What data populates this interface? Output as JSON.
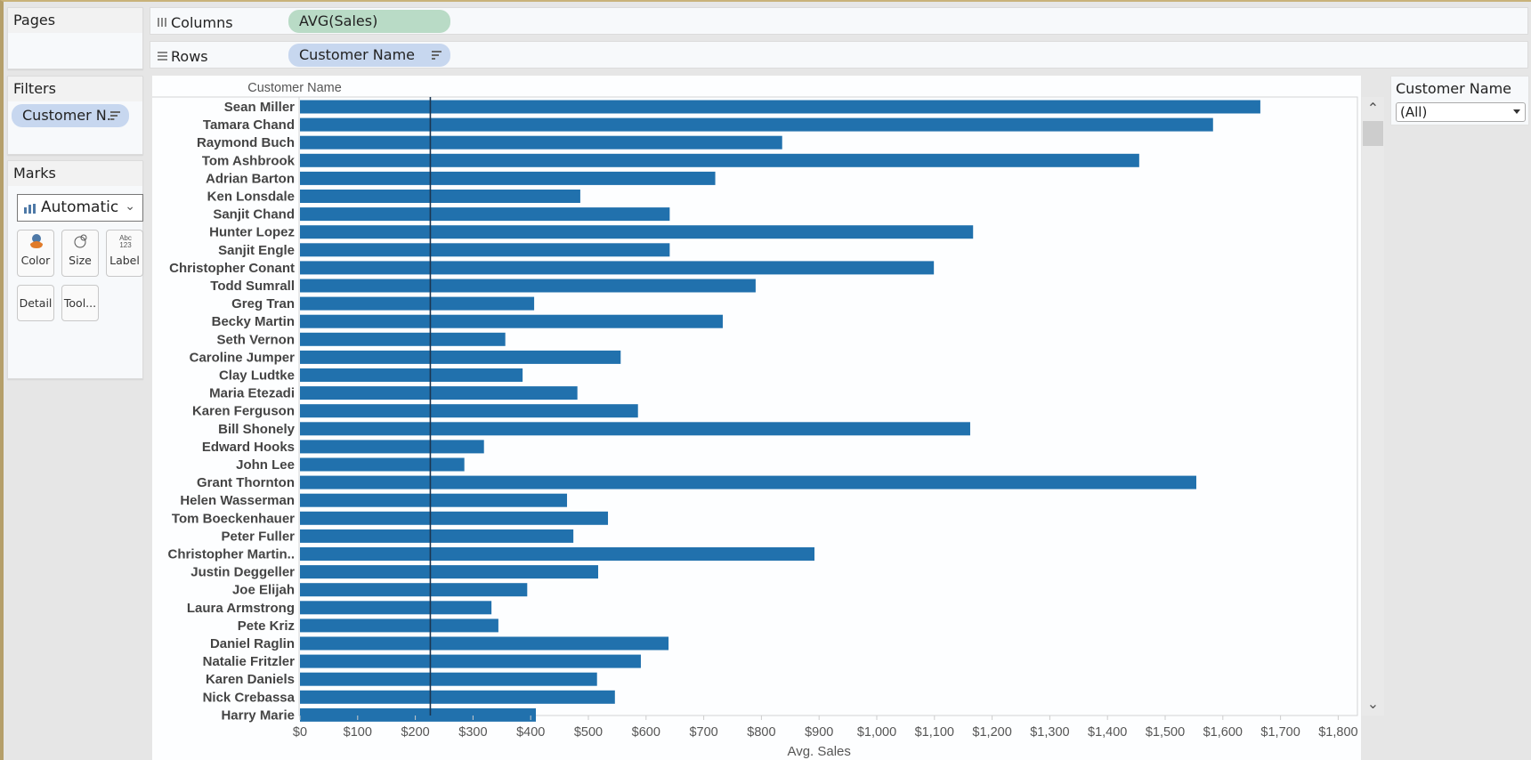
{
  "panels": {
    "pages_title": "Pages",
    "filters_title": "Filters",
    "marks_title": "Marks"
  },
  "filters": {
    "pill_label": "Customer N.."
  },
  "marks": {
    "type": "Automatic",
    "buttons": [
      {
        "label": "Color",
        "icon": "color-icon"
      },
      {
        "label": "Size",
        "icon": "size-icon"
      },
      {
        "label": "Label",
        "icon": "label-icon"
      },
      {
        "label": "Detail",
        "icon": "detail-icon"
      },
      {
        "label": "Tool...",
        "icon": "tooltip-icon"
      }
    ],
    "label_icon_text": "Abc\n123"
  },
  "shelves": {
    "columns_label": "Columns",
    "columns_pill": "AVG(Sales)",
    "rows_label": "Rows",
    "rows_pill": "Customer Name"
  },
  "quick_filter": {
    "title": "Customer Name",
    "selected": "(All)"
  },
  "colors": {
    "bar": "#2171ad",
    "reference_line": "#1b3550",
    "pill_blue": "#c7d7ef",
    "pill_green": "#b9dbc6"
  },
  "chart_data": {
    "type": "bar",
    "orientation": "horizontal",
    "row_header": "Customer Name",
    "xlabel": "Avg. Sales",
    "ylabel": "Customer Name",
    "xlim": [
      0,
      1850
    ],
    "x_ticks": [
      0,
      100,
      200,
      300,
      400,
      500,
      600,
      700,
      800,
      900,
      1000,
      1100,
      1200,
      1300,
      1400,
      1500,
      1600,
      1700,
      1800
    ],
    "x_tick_labels": [
      "$0",
      "$100",
      "$200",
      "$300",
      "$400",
      "$500",
      "$600",
      "$700",
      "$800",
      "$900",
      "$1,000",
      "$1,100",
      "$1,200",
      "$1,300",
      "$1,400",
      "$1,500",
      "$1,600",
      "$1,700",
      "$1,800"
    ],
    "reference_line_value": 226,
    "grid": false,
    "categories": [
      "Sean Miller",
      "Tamara Chand",
      "Raymond Buch",
      "Tom Ashbrook",
      "Adrian Barton",
      "Ken Lonsdale",
      "Sanjit Chand",
      "Hunter Lopez",
      "Sanjit Engle",
      "Christopher Conant",
      "Todd Sumrall",
      "Greg Tran",
      "Becky Martin",
      "Seth Vernon",
      "Caroline Jumper",
      "Clay Ludtke",
      "Maria Etezadi",
      "Karen Ferguson",
      "Bill Shonely",
      "Edward Hooks",
      "John Lee",
      "Grant Thornton",
      "Helen Wasserman",
      "Tom Boeckenhauer",
      "Peter Fuller",
      "Christopher Martin..",
      "Justin Deggeller",
      "Joe Elijah",
      "Laura Armstrong",
      "Pete Kriz",
      "Daniel Raglin",
      "Natalie Fritzler",
      "Karen Daniels",
      "Nick Crebassa",
      "Harry Marie"
    ],
    "values": [
      1665,
      1583,
      836,
      1455,
      720,
      486,
      641,
      1167,
      641,
      1099,
      790,
      406,
      733,
      356,
      556,
      386,
      481,
      586,
      1162,
      319,
      285,
      1554,
      463,
      534,
      474,
      892,
      517,
      394,
      332,
      344,
      639,
      591,
      515,
      546,
      409
    ]
  }
}
